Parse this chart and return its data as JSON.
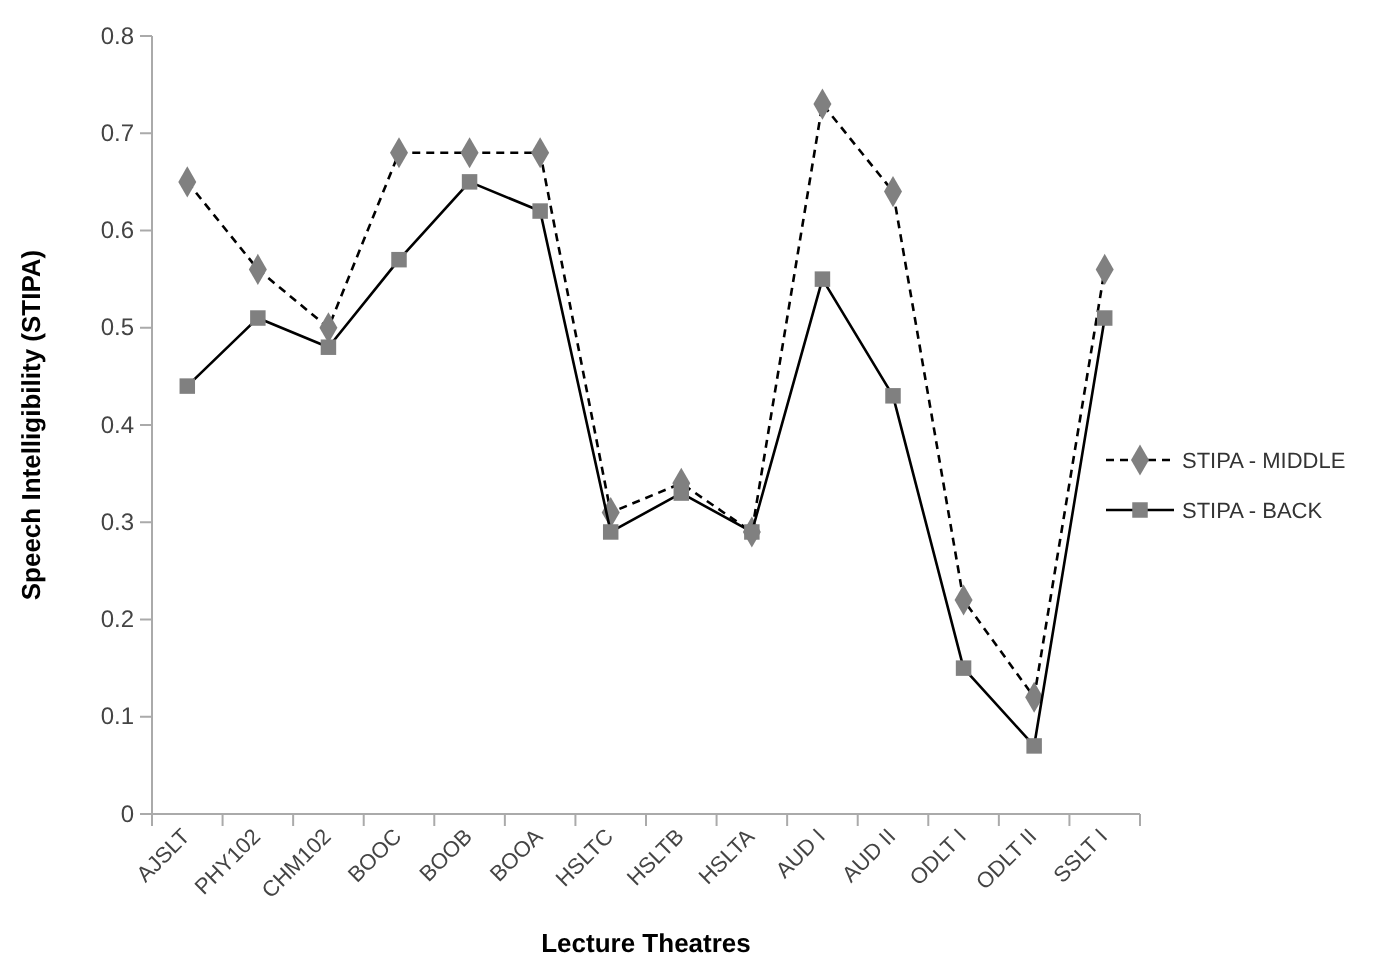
{
  "chart_data": {
    "type": "line",
    "xlabel": "Lecture Theatres",
    "ylabel": "Speech Intelligibility (STIPA)",
    "categories": [
      "AJSLT",
      "PHY102",
      "CHM102",
      "BOOC",
      "BOOB",
      "BOOA",
      "HSLTC",
      "HSLTB",
      "HSLTA",
      "AUD I",
      "AUD II",
      "ODLT I",
      "ODLT II",
      "SSLT I"
    ],
    "ylim": [
      0,
      0.8
    ],
    "yticks": [
      {
        "value": 0,
        "label": "0"
      },
      0.1,
      0.2,
      0.3,
      0.4,
      0.5,
      0.6,
      0.7,
      0.8
    ],
    "grid": false,
    "legend": "right",
    "series": [
      {
        "name": "STIPA - MIDDLE",
        "color": "#808080",
        "marker": "diamond",
        "line_style": "dashed",
        "values": [
          0.65,
          0.56,
          0.5,
          0.68,
          0.68,
          0.68,
          0.31,
          0.34,
          0.29,
          0.73,
          0.64,
          0.22,
          0.12,
          0.56
        ]
      },
      {
        "name": "STIPA - BACK",
        "color": "#808080",
        "marker": "square",
        "line_style": "solid",
        "values": [
          0.44,
          0.51,
          0.48,
          0.57,
          0.65,
          0.62,
          0.29,
          0.33,
          0.29,
          0.55,
          0.43,
          0.15,
          0.07,
          0.51
        ]
      }
    ]
  }
}
